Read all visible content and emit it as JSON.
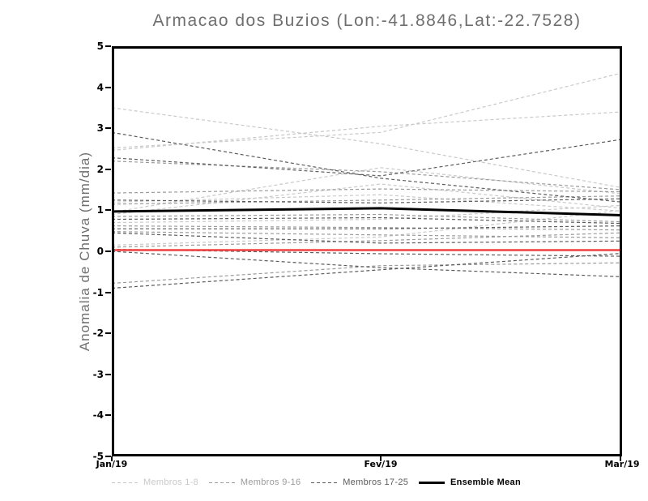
{
  "title": "Armacao dos Buzios (Lon:-41.8846,Lat:-22.7528)",
  "chart_data": {
    "type": "line",
    "title": "Armacao dos Buzios (Lon:-41.8846,Lat:-22.7528)",
    "ylabel": "Anomalia de Chuva (mm/dia)",
    "xlabel": "",
    "x_categories": [
      "Jan/19",
      "Fev/19",
      "Mar/19"
    ],
    "ylim": [
      -5,
      5
    ],
    "y_ticks": [
      5,
      4,
      3,
      2,
      1,
      0,
      -1,
      -2,
      -3,
      -4,
      -5
    ],
    "grid": false,
    "legend_position": "bottom",
    "colors": {
      "members_1_8": "#c9c9c9",
      "members_9_16": "#9b9b9b",
      "members_17_25": "#5c5c5c",
      "ensemble_mean": "#000000",
      "reference_zero_line": "#f04040",
      "title_text": "#6f6f6f",
      "frame": "#000000",
      "background": "#ffffff"
    },
    "member_groups": [
      {
        "name": "Membros 1-8",
        "color": "#c9c9c9",
        "members": [
          [
            3.5,
            2.62,
            1.55
          ],
          [
            2.52,
            2.9,
            4.35
          ],
          [
            2.46,
            3.05,
            3.4
          ],
          [
            0.95,
            2.04,
            1.4
          ],
          [
            0.9,
            1.64,
            1.05
          ],
          [
            1.2,
            1.38,
            0.98
          ],
          [
            0.15,
            0.35,
            1.0
          ],
          [
            0.7,
            0.78,
            1.12
          ]
        ]
      },
      {
        "name": "Membros 9-16",
        "color": "#9b9b9b",
        "members": [
          [
            2.2,
            1.94,
            1.5
          ],
          [
            1.42,
            1.52,
            1.45
          ],
          [
            1.15,
            1.25,
            1.35
          ],
          [
            0.85,
            0.9,
            0.72
          ],
          [
            0.62,
            0.58,
            0.52
          ],
          [
            0.48,
            0.4,
            0.33
          ],
          [
            0.1,
            0.26,
            0.45
          ],
          [
            -0.78,
            -0.35,
            -0.28
          ]
        ]
      },
      {
        "name": "Membros 17-25",
        "color": "#5c5c5c",
        "members": [
          [
            2.9,
            1.78,
            1.2
          ],
          [
            2.28,
            1.84,
            2.73
          ],
          [
            1.25,
            1.18,
            1.28
          ],
          [
            0.78,
            0.82,
            0.68
          ],
          [
            0.55,
            0.55,
            0.62
          ],
          [
            0.45,
            0.2,
            0.25
          ],
          [
            0.05,
            -0.06,
            -0.12
          ],
          [
            0.0,
            -0.4,
            -0.62
          ],
          [
            -0.9,
            -0.45,
            -0.05
          ]
        ]
      }
    ],
    "ensemble_mean": {
      "name": "Ensemble Mean",
      "color": "#000000",
      "values": [
        0.97,
        1.05,
        0.88
      ]
    },
    "reference_line": {
      "color": "#f04040",
      "values": [
        0.03,
        0.03,
        0.03
      ]
    }
  },
  "legend": {
    "items": [
      {
        "label": "Membros 1-8",
        "color": "#c9c9c9",
        "style": "dashed"
      },
      {
        "label": "Membros 9-16",
        "color": "#9b9b9b",
        "style": "dashed"
      },
      {
        "label": "Membros 17-25",
        "color": "#5c5c5c",
        "style": "dashed"
      },
      {
        "label": "Ensemble Mean",
        "color": "#000000",
        "style": "solid"
      }
    ]
  }
}
